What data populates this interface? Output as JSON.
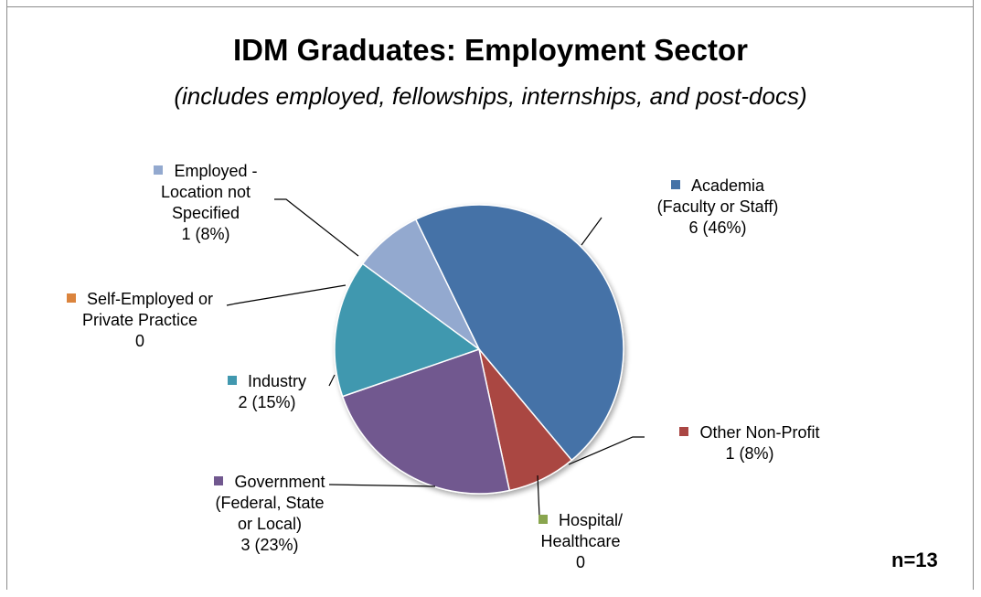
{
  "title": "IDM Graduates: Employment Sector",
  "subtitle": "(includes employed, fellowships, internships, and post-docs)",
  "n_label": "n=13",
  "chart_data": {
    "type": "pie",
    "start_angle_deg": -26,
    "slices": [
      {
        "key": "academia",
        "lines": [
          "Academia",
          "(Faculty or Staff)",
          "6 (46%)"
        ],
        "value": 6,
        "color": "#4572a7"
      },
      {
        "key": "other-nonprofit",
        "lines": [
          "Other Non-Profit",
          "1 (8%)"
        ],
        "value": 1,
        "color": "#aa4643"
      },
      {
        "key": "hospital",
        "lines": [
          "Hospital/",
          "Healthcare",
          "0"
        ],
        "value": 0,
        "color": "#89a54e"
      },
      {
        "key": "government",
        "lines": [
          "Government",
          "(Federal, State",
          "or Local)",
          "3 (23%)"
        ],
        "value": 3,
        "color": "#71588f"
      },
      {
        "key": "industry",
        "lines": [
          "Industry",
          "2 (15%)"
        ],
        "value": 2,
        "color": "#4198af"
      },
      {
        "key": "self-employed",
        "lines": [
          "Self-Employed or",
          "Private Practice",
          "0"
        ],
        "value": 0,
        "color": "#db843d"
      },
      {
        "key": "employed-unspecified",
        "lines": [
          "Employed -",
          "Location not",
          "Specified",
          "1 (8%)"
        ],
        "value": 1,
        "color": "#93a9cf"
      }
    ]
  }
}
